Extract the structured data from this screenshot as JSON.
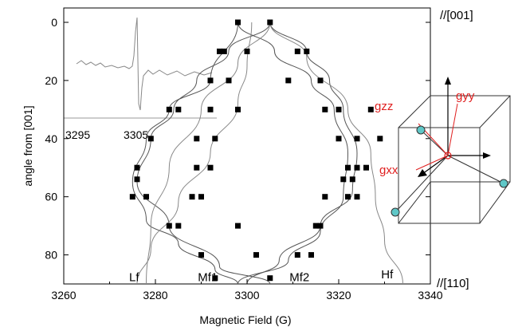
{
  "chart_data": {
    "type": "scatter",
    "xlabel": "Magnetic Field (G)",
    "ylabel": "angle from [001]",
    "xlim": [
      3260,
      3340
    ],
    "ylim": [
      90,
      0
    ],
    "x_ticks": [
      "3260",
      "3280",
      "3300",
      "3320",
      "3340"
    ],
    "x_tick_values": [
      3260,
      3280,
      3300,
      3320,
      3340
    ],
    "y_ticks": [
      "0",
      "20",
      "40",
      "60",
      "80"
    ],
    "y_tick_values": [
      0,
      20,
      40,
      60,
      80
    ],
    "direction_labels": {
      "top": "//[001]",
      "bottom": "//[110]"
    },
    "series_labels": [
      {
        "text": "Lf",
        "x": 3276,
        "y": 88
      },
      {
        "text": "Mf1",
        "x": 3291,
        "y": 88
      },
      {
        "text": "Mf2",
        "x": 3311,
        "y": 88
      },
      {
        "text": "Hf",
        "x": 3331,
        "y": 87
      }
    ],
    "points": [
      [
        3298,
        0
      ],
      [
        3305,
        0
      ],
      [
        3294,
        10
      ],
      [
        3295,
        10
      ],
      [
        3300,
        10
      ],
      [
        3311,
        10
      ],
      [
        3313,
        10
      ],
      [
        3292,
        20
      ],
      [
        3296,
        20
      ],
      [
        3309,
        20
      ],
      [
        3316,
        20
      ],
      [
        3283,
        30
      ],
      [
        3285,
        30
      ],
      [
        3292,
        30
      ],
      [
        3298,
        30
      ],
      [
        3317,
        30
      ],
      [
        3320,
        30
      ],
      [
        3327,
        30
      ],
      [
        3279,
        40
      ],
      [
        3289,
        40
      ],
      [
        3293,
        40
      ],
      [
        3320,
        40
      ],
      [
        3324,
        40
      ],
      [
        3329,
        40
      ],
      [
        3276,
        50
      ],
      [
        3289,
        50
      ],
      [
        3292,
        50
      ],
      [
        3322,
        50
      ],
      [
        3324,
        50
      ],
      [
        3326,
        50
      ],
      [
        3276,
        54
      ],
      [
        3321,
        54
      ],
      [
        3323,
        54
      ],
      [
        3275,
        60
      ],
      [
        3278,
        60
      ],
      [
        3288,
        60
      ],
      [
        3290,
        60
      ],
      [
        3317,
        60
      ],
      [
        3322,
        60
      ],
      [
        3324,
        60
      ],
      [
        3283,
        70
      ],
      [
        3285,
        70
      ],
      [
        3298,
        70
      ],
      [
        3315,
        70
      ],
      [
        3316,
        70
      ],
      [
        3290,
        80
      ],
      [
        3302,
        80
      ],
      [
        3311,
        80
      ],
      [
        3314,
        80
      ],
      [
        3293,
        88
      ],
      [
        3305,
        88
      ]
    ],
    "curves": [
      {
        "name": "Lf",
        "points": [
          [
            3298,
            0
          ],
          [
            3292,
            20
          ],
          [
            3283,
            30
          ],
          [
            3278,
            40
          ],
          [
            3275,
            55
          ],
          [
            3278,
            68
          ],
          [
            3285,
            76
          ],
          [
            3293,
            85
          ],
          [
            3298,
            90
          ]
        ]
      },
      {
        "name": "Mf1",
        "points": [
          [
            3305,
            0
          ],
          [
            3296,
            10
          ],
          [
            3289,
            20
          ],
          [
            3284,
            30
          ],
          [
            3279,
            40
          ],
          [
            3276,
            55
          ],
          [
            3283,
            70
          ],
          [
            3294,
            84
          ],
          [
            3305,
            90
          ]
        ]
      },
      {
        "name": "Mf2",
        "points": [
          [
            3298,
            0
          ],
          [
            3306,
            10
          ],
          [
            3314,
            20
          ],
          [
            3319,
            30
          ],
          [
            3322,
            45
          ],
          [
            3321,
            60
          ],
          [
            3316,
            72
          ],
          [
            3309,
            82
          ],
          [
            3298,
            90
          ]
        ]
      },
      {
        "name": "Hf",
        "points": [
          [
            3305,
            0
          ],
          [
            3313,
            10
          ],
          [
            3318,
            20
          ],
          [
            3321,
            30
          ],
          [
            3324,
            45
          ],
          [
            3323,
            58
          ],
          [
            3316,
            70
          ],
          [
            3307,
            82
          ],
          [
            3300,
            90
          ]
        ]
      },
      {
        "name": "light1",
        "points": [
          [
            3301,
            0
          ],
          [
            3300,
            15
          ],
          [
            3298,
            28
          ],
          [
            3292,
            45
          ],
          [
            3285,
            62
          ],
          [
            3279,
            78
          ],
          [
            3276,
            90
          ]
        ]
      },
      {
        "name": "light2",
        "points": [
          [
            3305,
            0
          ],
          [
            3313,
            12
          ],
          [
            3322,
            30
          ],
          [
            3327,
            45
          ],
          [
            3328,
            60
          ],
          [
            3330,
            75
          ],
          [
            3334,
            90
          ]
        ]
      },
      {
        "name": "light3",
        "points": [
          [
            3305,
            0
          ],
          [
            3298,
            14
          ],
          [
            3290,
            30
          ],
          [
            3283,
            50
          ],
          [
            3279,
            70
          ],
          [
            3278,
            90
          ]
        ]
      }
    ]
  },
  "inset": {
    "ticks": [
      "3295",
      "3305"
    ]
  },
  "diagram_labels": {
    "gzz": "gzz",
    "gyy": "gyy",
    "gxx": "gxx"
  }
}
